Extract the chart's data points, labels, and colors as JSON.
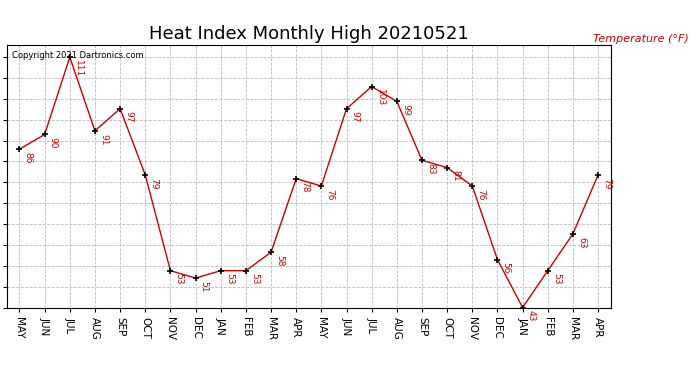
{
  "title": "Heat Index Monthly High 20210521",
  "ylabel": "Temperature (°F)",
  "copyright": "Copyright 2021 Dartronics.com",
  "x_labels": [
    "MAY",
    "JUN",
    "JUL",
    "AUG",
    "SEP",
    "OCT",
    "NOV",
    "DEC",
    "JAN",
    "FEB",
    "MAR",
    "APR",
    "MAY",
    "JUN",
    "JUL",
    "AUG",
    "SEP",
    "OCT",
    "NOV",
    "DEC",
    "JAN",
    "FEB",
    "MAR",
    "APR"
  ],
  "values": [
    86,
    90,
    111,
    91,
    97,
    79,
    53,
    51,
    53,
    53,
    58,
    78,
    76,
    97,
    103,
    99,
    83,
    81,
    76,
    56,
    43,
    53,
    63,
    79
  ],
  "line_color": "#cc0000",
  "marker_color": "#000000",
  "bg_color": "#ffffff",
  "grid_color": "#bbbbbb",
  "label_color": "#cc0000",
  "yticks": [
    43.0,
    48.7,
    54.3,
    60.0,
    65.7,
    71.3,
    77.0,
    82.7,
    88.3,
    94.0,
    99.7,
    105.3,
    111.0
  ],
  "ymin": 43.0,
  "ymax": 114.3,
  "title_fontsize": 13,
  "axis_label_fontsize": 7.5,
  "annotation_fontsize": 6.5,
  "copyright_fontsize": 6
}
